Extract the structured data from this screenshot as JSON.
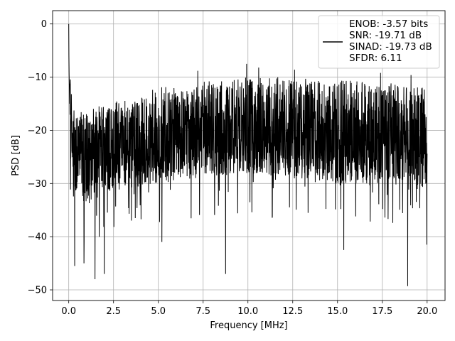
{
  "chart_data": {
    "type": "line",
    "title": "",
    "xlabel": "Frequency [MHz]",
    "ylabel": "PSD [dB]",
    "xlim": [
      -0.9,
      21.0
    ],
    "ylim": [
      -52.0,
      2.5
    ],
    "xticks": [
      0.0,
      2.5,
      5.0,
      7.5,
      10.0,
      12.5,
      15.0,
      17.5,
      20.0
    ],
    "xtick_labels": [
      "0.0",
      "2.5",
      "5.0",
      "7.5",
      "10.0",
      "12.5",
      "15.0",
      "17.5",
      "20.0"
    ],
    "yticks": [
      0,
      -10,
      -20,
      -30,
      -40,
      -50
    ],
    "ytick_labels": [
      "0",
      "−10",
      "−20",
      "−30",
      "−40",
      "−50"
    ],
    "grid": true,
    "legend_position": "top-right",
    "legend_lines": [
      "ENOB: -3.57 bits",
      "SNR: -19.71 dB",
      "SINAD: -19.73 dB",
      "SFDR: 6.11"
    ],
    "series": [
      {
        "color": "#000000",
        "envelope": {
          "x": [
            0.0,
            0.1,
            0.25,
            0.5,
            1.0,
            2.0,
            3.0,
            5.0,
            7.0,
            10.0,
            12.5,
            15.0,
            17.5,
            20.0
          ],
          "upper": [
            0.0,
            -11.0,
            -15.0,
            -16.5,
            -16.5,
            -15.0,
            -14.0,
            -12.0,
            -11.0,
            -10.0,
            -10.0,
            -10.5,
            -11.0,
            -11.5
          ],
          "mid": [
            0.0,
            -20.0,
            -22.0,
            -24.0,
            -24.0,
            -23.0,
            -22.5,
            -22.0,
            -21.5,
            -21.0,
            -21.0,
            -21.5,
            -21.5,
            -22.0
          ],
          "lower": [
            0.0,
            -26.0,
            -30.0,
            -33.0,
            -34.0,
            -32.0,
            -31.0,
            -30.0,
            -29.0,
            -28.0,
            -29.0,
            -30.0,
            -30.0,
            -31.0
          ]
        },
        "spikes_up": [
          {
            "x": 9.93,
            "y": -7.5
          },
          {
            "x": 10.6,
            "y": -8.2
          },
          {
            "x": 7.2,
            "y": -8.8
          },
          {
            "x": 12.6,
            "y": -8.6
          },
          {
            "x": 17.4,
            "y": -9.2
          },
          {
            "x": 19.1,
            "y": -9.6
          }
        ],
        "spikes_down": [
          {
            "x": 0.33,
            "y": -45.5
          },
          {
            "x": 0.85,
            "y": -45.0
          },
          {
            "x": 1.47,
            "y": -48.0
          },
          {
            "x": 1.98,
            "y": -47.0
          },
          {
            "x": 5.2,
            "y": -41.0
          },
          {
            "x": 8.75,
            "y": -47.0
          },
          {
            "x": 15.35,
            "y": -42.5
          },
          {
            "x": 18.92,
            "y": -49.3
          },
          {
            "x": 19.98,
            "y": -41.5
          }
        ],
        "num_points": 2048,
        "noise_seed": 7
      }
    ]
  }
}
